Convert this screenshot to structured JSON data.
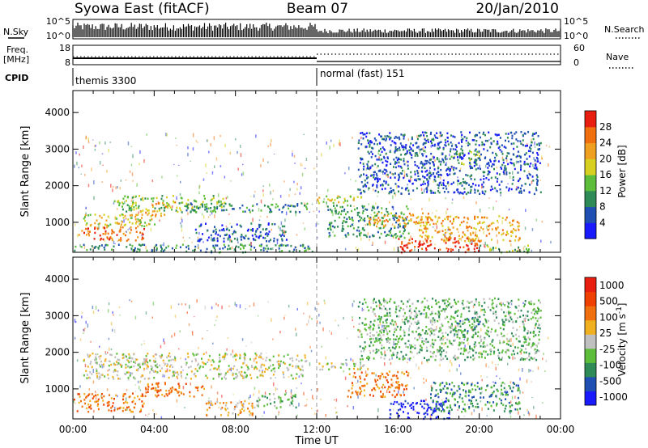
{
  "header": {
    "station": "Syowa East (fitACF)",
    "beam": "Beam 07",
    "date": "20/Jan/2010"
  },
  "sky_panel": {
    "left_label": "N.Sky",
    "right_label": "N.Search",
    "left_ticks": [
      "10^5",
      "10^0"
    ],
    "right_ticks": [
      "10^5",
      "10^0"
    ]
  },
  "freq_panel": {
    "left_label_1": "Freq.",
    "left_label_2": "[MHz]",
    "right_label": "Nave",
    "left_ticks": [
      "18",
      "8"
    ],
    "right_ticks": [
      "60",
      "0"
    ]
  },
  "cpid": {
    "label": "CPID",
    "segments": [
      {
        "start_hour": 0,
        "text": "themis 3300"
      },
      {
        "start_hour": 12,
        "text": "normal (fast) 151"
      }
    ]
  },
  "x_axis": {
    "title": "Time UT",
    "range_hours": [
      0,
      24
    ],
    "ticks": [
      {
        "hour": 0,
        "label": "00:00"
      },
      {
        "hour": 4,
        "label": "04:00"
      },
      {
        "hour": 8,
        "label": "08:00"
      },
      {
        "hour": 12,
        "label": "12:00"
      },
      {
        "hour": 16,
        "label": "16:00"
      },
      {
        "hour": 20,
        "label": "20:00"
      },
      {
        "hour": 24,
        "label": "00:00"
      }
    ]
  },
  "chart_data": [
    {
      "type": "heatmap",
      "quantity": "power",
      "ylabel": "Slant Range [km]",
      "ylim": [
        180,
        4600
      ],
      "yticks": [
        {
          "value": 1000,
          "label": "1000"
        },
        {
          "value": 2000,
          "label": "2000"
        },
        {
          "value": 3000,
          "label": "3000"
        },
        {
          "value": 4000,
          "label": "4000"
        }
      ],
      "colorbar": {
        "label": "Power [dB]",
        "tick_labels": [
          "4",
          "8",
          "12",
          "16",
          "20",
          "24",
          "28"
        ],
        "colors": [
          "#1a1aff",
          "#1f4fb3",
          "#2e8b57",
          "#5dbe3c",
          "#d8d020",
          "#f0a020",
          "#f07010",
          "#e81e10"
        ]
      },
      "regions": [
        {
          "t0": 0.0,
          "t1": 11.8,
          "r0": 200,
          "r1": 420,
          "level": 2
        },
        {
          "t0": 0.2,
          "t1": 3.5,
          "r0": 520,
          "r1": 900,
          "level": 6
        },
        {
          "t0": 0.5,
          "t1": 4.0,
          "r0": 900,
          "r1": 1250,
          "level": 4
        },
        {
          "t0": 2.0,
          "t1": 7.5,
          "r0": 1300,
          "r1": 1750,
          "level": 3
        },
        {
          "t0": 3.8,
          "t1": 5.0,
          "r0": 1450,
          "r1": 1600,
          "level": 5
        },
        {
          "t0": 3.0,
          "t1": 4.5,
          "r0": 1100,
          "r1": 1350,
          "level": 5
        },
        {
          "t0": 6.0,
          "t1": 10.5,
          "r0": 500,
          "r1": 1000,
          "level": 1
        },
        {
          "t0": 5.5,
          "t1": 11.5,
          "r0": 1300,
          "r1": 1550,
          "level": 2
        },
        {
          "t0": 12.0,
          "t1": 14.5,
          "r0": 1550,
          "r1": 1750,
          "level": 4
        },
        {
          "t0": 12.5,
          "t1": 16.5,
          "r0": 600,
          "r1": 1500,
          "level": 2
        },
        {
          "t0": 14.5,
          "t1": 17.5,
          "r0": 900,
          "r1": 1300,
          "level": 5
        },
        {
          "t0": 16.0,
          "t1": 20.0,
          "r0": 200,
          "r1": 600,
          "level": 7
        },
        {
          "t0": 17.0,
          "t1": 22.0,
          "r0": 500,
          "r1": 1200,
          "level": 5
        },
        {
          "t0": 20.0,
          "t1": 22.5,
          "r0": 200,
          "r1": 400,
          "level": 3
        },
        {
          "t0": 18.5,
          "t1": 20.0,
          "r0": 2600,
          "r1": 3000,
          "level": 3
        },
        {
          "t0": 14.0,
          "t1": 23.0,
          "r0": 1800,
          "r1": 3500,
          "level": 1
        }
      ]
    },
    {
      "type": "heatmap",
      "quantity": "velocity",
      "ylabel": "Slant Range [km]",
      "ylim": [
        180,
        4600
      ],
      "yticks": [
        {
          "value": 1000,
          "label": "1000"
        },
        {
          "value": 2000,
          "label": "2000"
        },
        {
          "value": 3000,
          "label": "3000"
        },
        {
          "value": 4000,
          "label": "4000"
        }
      ],
      "colorbar": {
        "label": "Velocity [m s^-1]",
        "tick_labels": [
          "1000",
          "500",
          "100",
          "25",
          "-25",
          "-100",
          "-500",
          "-1000"
        ],
        "colors": [
          "#1a1aff",
          "#1f4fb3",
          "#2e8b57",
          "#5dbe3c",
          "#c0c0c0",
          "#f0b020",
          "#f07010",
          "#f04000",
          "#e81e10"
        ]
      },
      "regions": [
        {
          "t0": 0.0,
          "t1": 3.5,
          "r0": 400,
          "r1": 900,
          "level": 6
        },
        {
          "t0": 3.5,
          "t1": 6.5,
          "r0": 800,
          "r1": 1200,
          "level": 6
        },
        {
          "t0": 0.5,
          "t1": 11.5,
          "r0": 1300,
          "r1": 2000,
          "level": 4
        },
        {
          "t0": 6.5,
          "t1": 9.0,
          "r0": 300,
          "r1": 700,
          "level": 5
        },
        {
          "t0": 9.0,
          "t1": 11.0,
          "r0": 500,
          "r1": 900,
          "level": 3
        },
        {
          "t0": 12.0,
          "t1": 14.5,
          "r0": 1550,
          "r1": 1750,
          "level": 4
        },
        {
          "t0": 13.5,
          "t1": 16.5,
          "r0": 800,
          "r1": 1500,
          "level": 6
        },
        {
          "t0": 15.5,
          "t1": 18.5,
          "r0": 200,
          "r1": 700,
          "level": 0
        },
        {
          "t0": 17.5,
          "t1": 22.0,
          "r0": 400,
          "r1": 1200,
          "level": 2
        },
        {
          "t0": 18.5,
          "t1": 20.0,
          "r0": 2600,
          "r1": 3000,
          "level": 2
        },
        {
          "t0": 14.0,
          "t1": 23.0,
          "r0": 1800,
          "r1": 3500,
          "level": 3
        }
      ]
    }
  ]
}
